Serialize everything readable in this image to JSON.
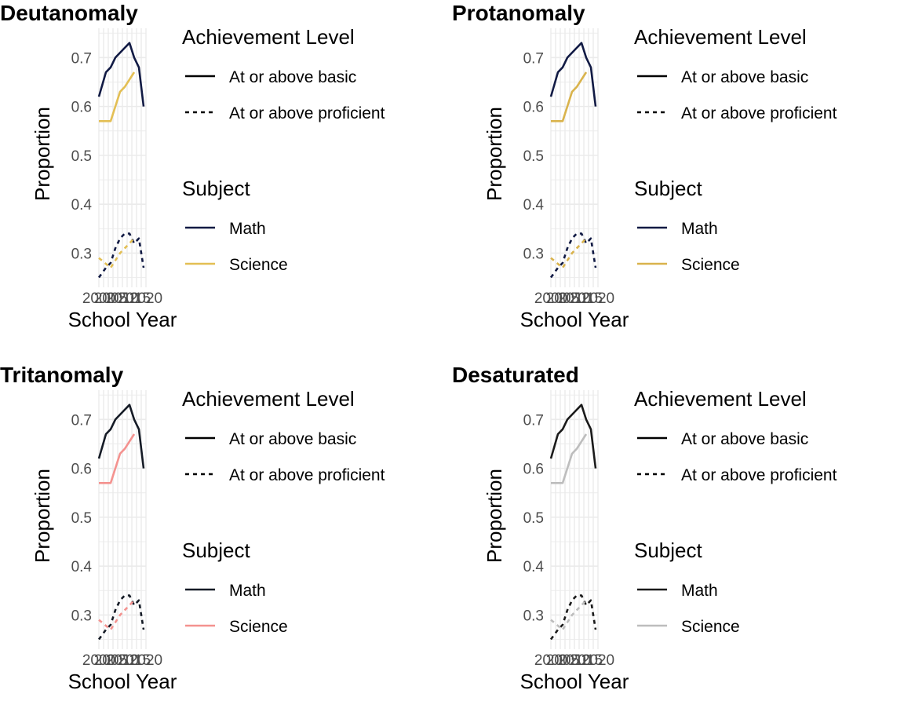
{
  "colors": {
    "grid": "#ebebeb",
    "level_key": "#000000"
  },
  "legend": {
    "level_title": "Achievement Level",
    "level_items": [
      "At or above basic",
      "At or above proficient"
    ],
    "subject_title": "Subject",
    "subject_items": [
      "Math",
      "Science"
    ]
  },
  "chart_data": [
    {
      "type": "line",
      "title": "Deutanomaly",
      "xlabel": "School Year",
      "ylabel": "Proportion",
      "xlim": [
        2000,
        2020
      ],
      "ylim": [
        0.23,
        0.76
      ],
      "x_tick_labels": [
        "2000",
        "2005",
        "2010",
        "2015",
        "2020"
      ],
      "y_ticks": [
        0.3,
        0.4,
        0.5,
        0.6,
        0.7
      ],
      "y_tick_labels": [
        "0.3",
        "0.4",
        "0.5",
        "0.6",
        "0.7"
      ],
      "grid": true,
      "legend_position": "right",
      "subject_colors": {
        "Math": "#111a44",
        "Science": "#e3bf54"
      },
      "series": [
        {
          "subject": "Math",
          "level": "At or above basic",
          "x": [
            2000,
            2003,
            2005,
            2007,
            2009,
            2011,
            2013,
            2015,
            2017,
            2019
          ],
          "y": [
            0.62,
            0.67,
            0.68,
            0.7,
            0.71,
            0.72,
            0.73,
            0.7,
            0.68,
            0.6
          ]
        },
        {
          "subject": "Math",
          "level": "At or above proficient",
          "x": [
            2000,
            2003,
            2005,
            2007,
            2009,
            2011,
            2013,
            2015,
            2017,
            2019
          ],
          "y": [
            0.25,
            0.27,
            0.28,
            0.31,
            0.33,
            0.34,
            0.34,
            0.32,
            0.33,
            0.27
          ]
        },
        {
          "subject": "Science",
          "level": "At or above basic",
          "x": [
            2000,
            2005,
            2009,
            2011,
            2015
          ],
          "y": [
            0.57,
            0.57,
            0.63,
            0.64,
            0.67
          ]
        },
        {
          "subject": "Science",
          "level": "At or above proficient",
          "x": [
            2000,
            2005,
            2009,
            2011,
            2015
          ],
          "y": [
            0.29,
            0.27,
            0.3,
            0.31,
            0.33
          ]
        }
      ]
    },
    {
      "type": "line",
      "title": "Protanomaly",
      "xlabel": "School Year",
      "ylabel": "Proportion",
      "xlim": [
        2000,
        2020
      ],
      "ylim": [
        0.23,
        0.76
      ],
      "x_tick_labels": [
        "2000",
        "2005",
        "2010",
        "2015",
        "2020"
      ],
      "y_ticks": [
        0.3,
        0.4,
        0.5,
        0.6,
        0.7
      ],
      "y_tick_labels": [
        "0.3",
        "0.4",
        "0.5",
        "0.6",
        "0.7"
      ],
      "grid": true,
      "legend_position": "right",
      "subject_colors": {
        "Math": "#111a44",
        "Science": "#d9b34c"
      },
      "series": [
        {
          "subject": "Math",
          "level": "At or above basic",
          "x": [
            2000,
            2003,
            2005,
            2007,
            2009,
            2011,
            2013,
            2015,
            2017,
            2019
          ],
          "y": [
            0.62,
            0.67,
            0.68,
            0.7,
            0.71,
            0.72,
            0.73,
            0.7,
            0.68,
            0.6
          ]
        },
        {
          "subject": "Math",
          "level": "At or above proficient",
          "x": [
            2000,
            2003,
            2005,
            2007,
            2009,
            2011,
            2013,
            2015,
            2017,
            2019
          ],
          "y": [
            0.25,
            0.27,
            0.28,
            0.31,
            0.33,
            0.34,
            0.34,
            0.32,
            0.33,
            0.27
          ]
        },
        {
          "subject": "Science",
          "level": "At or above basic",
          "x": [
            2000,
            2005,
            2009,
            2011,
            2015
          ],
          "y": [
            0.57,
            0.57,
            0.63,
            0.64,
            0.67
          ]
        },
        {
          "subject": "Science",
          "level": "At or above proficient",
          "x": [
            2000,
            2005,
            2009,
            2011,
            2015
          ],
          "y": [
            0.29,
            0.27,
            0.3,
            0.31,
            0.33
          ]
        }
      ]
    },
    {
      "type": "line",
      "title": "Tritanomaly",
      "xlabel": "School Year",
      "ylabel": "Proportion",
      "xlim": [
        2000,
        2020
      ],
      "ylim": [
        0.23,
        0.76
      ],
      "x_tick_labels": [
        "2000",
        "2005",
        "2010",
        "2015",
        "2020"
      ],
      "y_ticks": [
        0.3,
        0.4,
        0.5,
        0.6,
        0.7
      ],
      "y_tick_labels": [
        "0.3",
        "0.4",
        "0.5",
        "0.6",
        "0.7"
      ],
      "grid": true,
      "legend_position": "right",
      "subject_colors": {
        "Math": "#151b26",
        "Science": "#f4928f"
      },
      "series": [
        {
          "subject": "Math",
          "level": "At or above basic",
          "x": [
            2000,
            2003,
            2005,
            2007,
            2009,
            2011,
            2013,
            2015,
            2017,
            2019
          ],
          "y": [
            0.62,
            0.67,
            0.68,
            0.7,
            0.71,
            0.72,
            0.73,
            0.7,
            0.68,
            0.6
          ]
        },
        {
          "subject": "Math",
          "level": "At or above proficient",
          "x": [
            2000,
            2003,
            2005,
            2007,
            2009,
            2011,
            2013,
            2015,
            2017,
            2019
          ],
          "y": [
            0.25,
            0.27,
            0.28,
            0.31,
            0.33,
            0.34,
            0.34,
            0.32,
            0.33,
            0.27
          ]
        },
        {
          "subject": "Science",
          "level": "At or above basic",
          "x": [
            2000,
            2005,
            2009,
            2011,
            2015
          ],
          "y": [
            0.57,
            0.57,
            0.63,
            0.64,
            0.67
          ]
        },
        {
          "subject": "Science",
          "level": "At or above proficient",
          "x": [
            2000,
            2005,
            2009,
            2011,
            2015
          ],
          "y": [
            0.29,
            0.27,
            0.3,
            0.31,
            0.33
          ]
        }
      ]
    },
    {
      "type": "line",
      "title": "Desaturated",
      "xlabel": "School Year",
      "ylabel": "Proportion",
      "xlim": [
        2000,
        2020
      ],
      "ylim": [
        0.23,
        0.76
      ],
      "x_tick_labels": [
        "2000",
        "2005",
        "2010",
        "2015",
        "2020"
      ],
      "y_ticks": [
        0.3,
        0.4,
        0.5,
        0.6,
        0.7
      ],
      "y_tick_labels": [
        "0.3",
        "0.4",
        "0.5",
        "0.6",
        "0.7"
      ],
      "grid": true,
      "legend_position": "right",
      "subject_colors": {
        "Math": "#1a1a1a",
        "Science": "#bdbdbd"
      },
      "series": [
        {
          "subject": "Math",
          "level": "At or above basic",
          "x": [
            2000,
            2003,
            2005,
            2007,
            2009,
            2011,
            2013,
            2015,
            2017,
            2019
          ],
          "y": [
            0.62,
            0.67,
            0.68,
            0.7,
            0.71,
            0.72,
            0.73,
            0.7,
            0.68,
            0.6
          ]
        },
        {
          "subject": "Math",
          "level": "At or above proficient",
          "x": [
            2000,
            2003,
            2005,
            2007,
            2009,
            2011,
            2013,
            2015,
            2017,
            2019
          ],
          "y": [
            0.25,
            0.27,
            0.28,
            0.31,
            0.33,
            0.34,
            0.34,
            0.32,
            0.33,
            0.27
          ]
        },
        {
          "subject": "Science",
          "level": "At or above basic",
          "x": [
            2000,
            2005,
            2009,
            2011,
            2015
          ],
          "y": [
            0.57,
            0.57,
            0.63,
            0.64,
            0.67
          ]
        },
        {
          "subject": "Science",
          "level": "At or above proficient",
          "x": [
            2000,
            2005,
            2009,
            2011,
            2015
          ],
          "y": [
            0.29,
            0.27,
            0.3,
            0.31,
            0.33
          ]
        }
      ]
    }
  ]
}
